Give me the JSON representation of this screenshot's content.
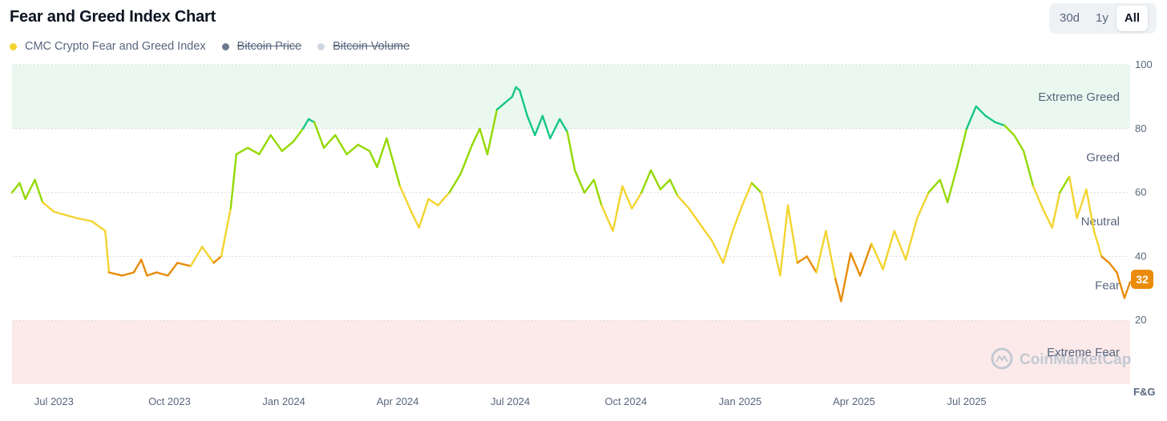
{
  "header": {
    "title": "Fear and Greed Index Chart",
    "ranges": [
      "30d",
      "1y",
      "All"
    ],
    "active_range": "All"
  },
  "legend": [
    {
      "label": "CMC Crypto Fear and Greed Index",
      "color": "#f3d42f",
      "enabled": true
    },
    {
      "label": "Bitcoin Price",
      "color": "#6f7b8f",
      "enabled": false
    },
    {
      "label": "Bitcoin Volume",
      "color": "#cfd6e0",
      "enabled": false
    }
  ],
  "watermark": "CoinMarketCap",
  "current_badge": "32",
  "colors": {
    "extreme_greed_bg": "#eaf8ef",
    "extreme_fear_bg": "#fceaea",
    "extreme_greed": "#16c784",
    "greed": "#93d900",
    "neutral": "#f3d42f",
    "fear": "#ea8c0a",
    "extreme_fear": "#ea3943"
  },
  "chart_data": {
    "type": "line",
    "title": "Fear and Greed Index Chart",
    "ylabel": "F&G",
    "ylim": [
      0,
      100
    ],
    "y_ticks": [
      20,
      40,
      60,
      80,
      100
    ],
    "x_tick_labels": [
      "Jul 2023",
      "Oct 2023",
      "Jan 2024",
      "Apr 2024",
      "Jul 2024",
      "Oct 2024",
      "Jan 2025",
      "Apr 2025",
      "Jul 2025"
    ],
    "x_range_months": [
      -0.5,
      28.9
    ],
    "zones": [
      {
        "label": "Extreme Greed",
        "from": 80,
        "to": 100,
        "label_at": 90
      },
      {
        "label": "Greed",
        "from": 60,
        "to": 80,
        "label_at": 71
      },
      {
        "label": "Neutral",
        "from": 40,
        "to": 60,
        "label_at": 51
      },
      {
        "label": "Fear",
        "from": 20,
        "to": 40,
        "label_at": 31
      },
      {
        "label": "Extreme Fear",
        "from": 0,
        "to": 20,
        "label_at": 10
      }
    ],
    "series": [
      {
        "name": "CMC Crypto Fear and Greed Index",
        "points_month_value": [
          [
            -0.5,
            60
          ],
          [
            -0.3,
            63
          ],
          [
            -0.15,
            58
          ],
          [
            0.1,
            64
          ],
          [
            0.3,
            57
          ],
          [
            0.6,
            54
          ],
          [
            0.9,
            53
          ],
          [
            1.2,
            52
          ],
          [
            1.6,
            51
          ],
          [
            1.95,
            48
          ],
          [
            2.05,
            35
          ],
          [
            2.4,
            34
          ],
          [
            2.7,
            35
          ],
          [
            2.9,
            39
          ],
          [
            3.05,
            34
          ],
          [
            3.3,
            35
          ],
          [
            3.6,
            34
          ],
          [
            3.85,
            38
          ],
          [
            4.2,
            37
          ],
          [
            4.5,
            43
          ],
          [
            4.8,
            38
          ],
          [
            5.0,
            40
          ],
          [
            5.25,
            55
          ],
          [
            5.4,
            72
          ],
          [
            5.7,
            74
          ],
          [
            6.0,
            72
          ],
          [
            6.3,
            78
          ],
          [
            6.6,
            73
          ],
          [
            6.9,
            76
          ],
          [
            7.15,
            80
          ],
          [
            7.3,
            83
          ],
          [
            7.45,
            82
          ],
          [
            7.7,
            74
          ],
          [
            8.0,
            78
          ],
          [
            8.3,
            72
          ],
          [
            8.6,
            75
          ],
          [
            8.9,
            73
          ],
          [
            9.1,
            68
          ],
          [
            9.35,
            77
          ],
          [
            9.7,
            62
          ],
          [
            10.0,
            54
          ],
          [
            10.2,
            49
          ],
          [
            10.45,
            58
          ],
          [
            10.7,
            56
          ],
          [
            11.0,
            60
          ],
          [
            11.3,
            66
          ],
          [
            11.6,
            75
          ],
          [
            11.8,
            80
          ],
          [
            12.0,
            72
          ],
          [
            12.25,
            86
          ],
          [
            12.45,
            88
          ],
          [
            12.65,
            90
          ],
          [
            12.75,
            93
          ],
          [
            12.85,
            92
          ],
          [
            13.05,
            84
          ],
          [
            13.25,
            78
          ],
          [
            13.45,
            84
          ],
          [
            13.65,
            77
          ],
          [
            13.9,
            83
          ],
          [
            14.1,
            79
          ],
          [
            14.3,
            67
          ],
          [
            14.55,
            60
          ],
          [
            14.8,
            64
          ],
          [
            15.0,
            56
          ],
          [
            15.3,
            48
          ],
          [
            15.55,
            62
          ],
          [
            15.8,
            55
          ],
          [
            16.05,
            60
          ],
          [
            16.3,
            67
          ],
          [
            16.55,
            61
          ],
          [
            16.8,
            64
          ],
          [
            17.0,
            59
          ],
          [
            17.3,
            55
          ],
          [
            17.6,
            50
          ],
          [
            17.9,
            45
          ],
          [
            18.2,
            38
          ],
          [
            18.45,
            48
          ],
          [
            18.7,
            56
          ],
          [
            18.95,
            63
          ],
          [
            19.2,
            60
          ],
          [
            19.45,
            47
          ],
          [
            19.7,
            34
          ],
          [
            19.9,
            56
          ],
          [
            20.15,
            38
          ],
          [
            20.4,
            40
          ],
          [
            20.65,
            35
          ],
          [
            20.9,
            48
          ],
          [
            21.15,
            33
          ],
          [
            21.3,
            26
          ],
          [
            21.55,
            41
          ],
          [
            21.8,
            34
          ],
          [
            22.1,
            44
          ],
          [
            22.4,
            36
          ],
          [
            22.7,
            48
          ],
          [
            23.0,
            39
          ],
          [
            23.3,
            52
          ],
          [
            23.6,
            60
          ],
          [
            23.9,
            64
          ],
          [
            24.1,
            57
          ],
          [
            24.35,
            68
          ],
          [
            24.6,
            80
          ],
          [
            24.85,
            87
          ],
          [
            25.1,
            84
          ],
          [
            25.35,
            82
          ],
          [
            25.6,
            81
          ],
          [
            25.85,
            78
          ],
          [
            26.1,
            73
          ],
          [
            26.35,
            62
          ],
          [
            26.6,
            55
          ],
          [
            26.85,
            49
          ],
          [
            27.05,
            60
          ],
          [
            27.3,
            65
          ],
          [
            27.5,
            52
          ],
          [
            27.75,
            61
          ],
          [
            27.95,
            48
          ],
          [
            28.15,
            40
          ],
          [
            28.35,
            38
          ],
          [
            28.55,
            35
          ],
          [
            28.75,
            27
          ],
          [
            28.9,
            32
          ]
        ]
      }
    ]
  }
}
